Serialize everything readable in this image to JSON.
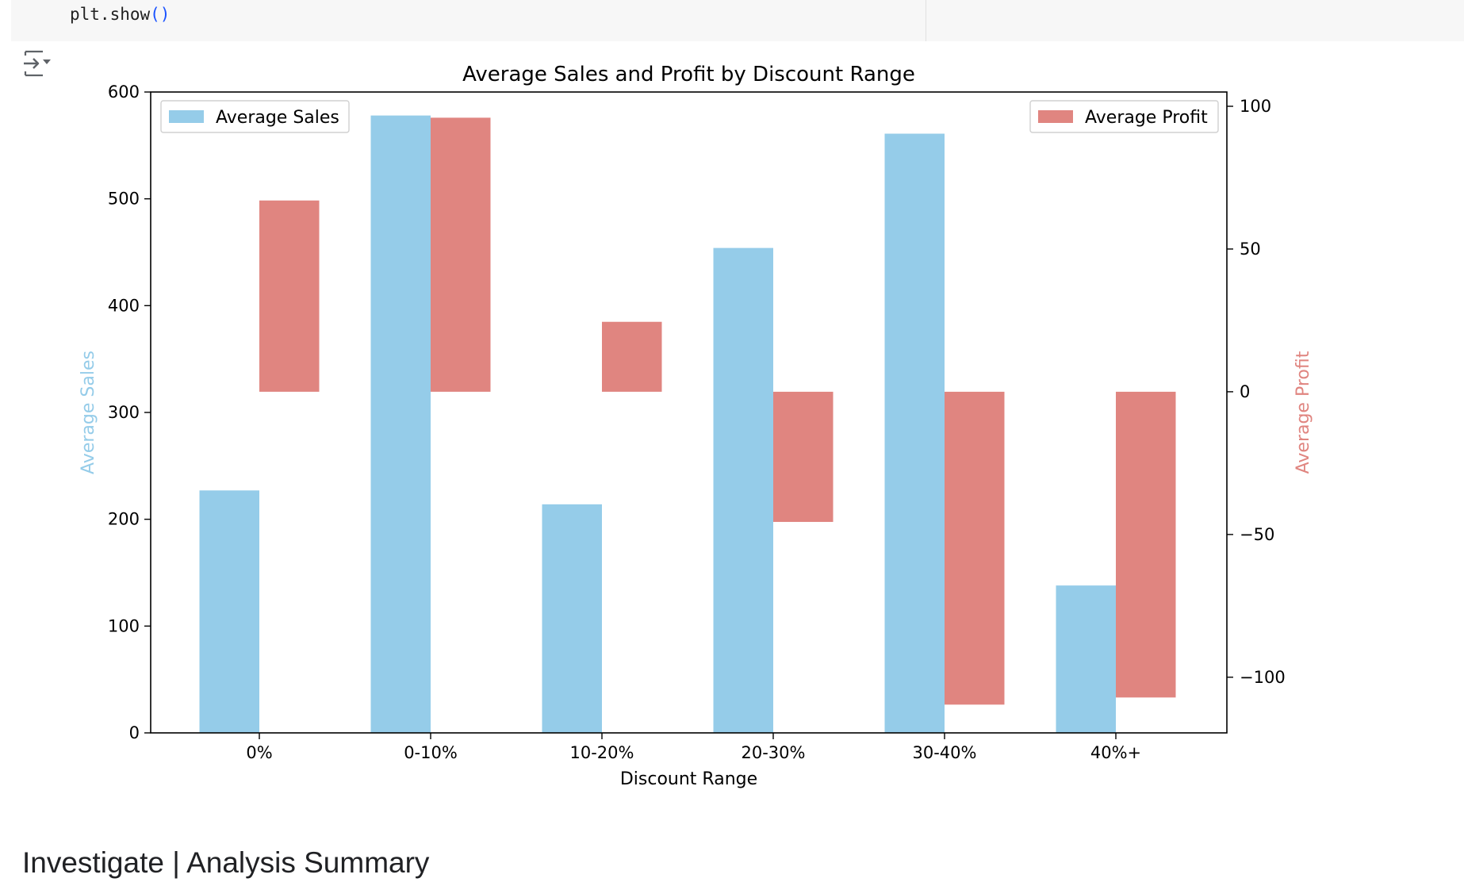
{
  "code_cell": {
    "line_text": "plt.show",
    "line_parens": "()"
  },
  "output_icon": "output-collapse-icon",
  "chart_data": {
    "type": "bar",
    "title": "Average Sales and Profit by Discount Range",
    "xlabel": "Discount Range",
    "categories": [
      "0%",
      "0-10%",
      "10-20%",
      "20-30%",
      "30-40%",
      "40%+"
    ],
    "series": [
      {
        "name": "Average Sales",
        "axis": "left",
        "color": "#95cce9",
        "values": [
          227,
          578,
          214,
          454,
          561,
          138
        ]
      },
      {
        "name": "Average Profit",
        "axis": "right",
        "color": "#e08580",
        "values": [
          67,
          96,
          24.5,
          -45.6,
          -109.6,
          -107.1
        ]
      }
    ],
    "left_axis": {
      "label": "Average Sales",
      "ylim": [
        0,
        600
      ],
      "ticks": [
        0,
        100,
        200,
        300,
        400,
        500,
        600
      ]
    },
    "right_axis": {
      "label": "Average Profit",
      "ylim": [
        -119.5,
        105
      ],
      "ticks": [
        -100,
        -50,
        0,
        50,
        100
      ]
    },
    "legend_left_position": "upper left",
    "legend_right_position": "upper right",
    "grid": false
  },
  "summary": {
    "heading": "Investigate | Analysis Summary"
  }
}
